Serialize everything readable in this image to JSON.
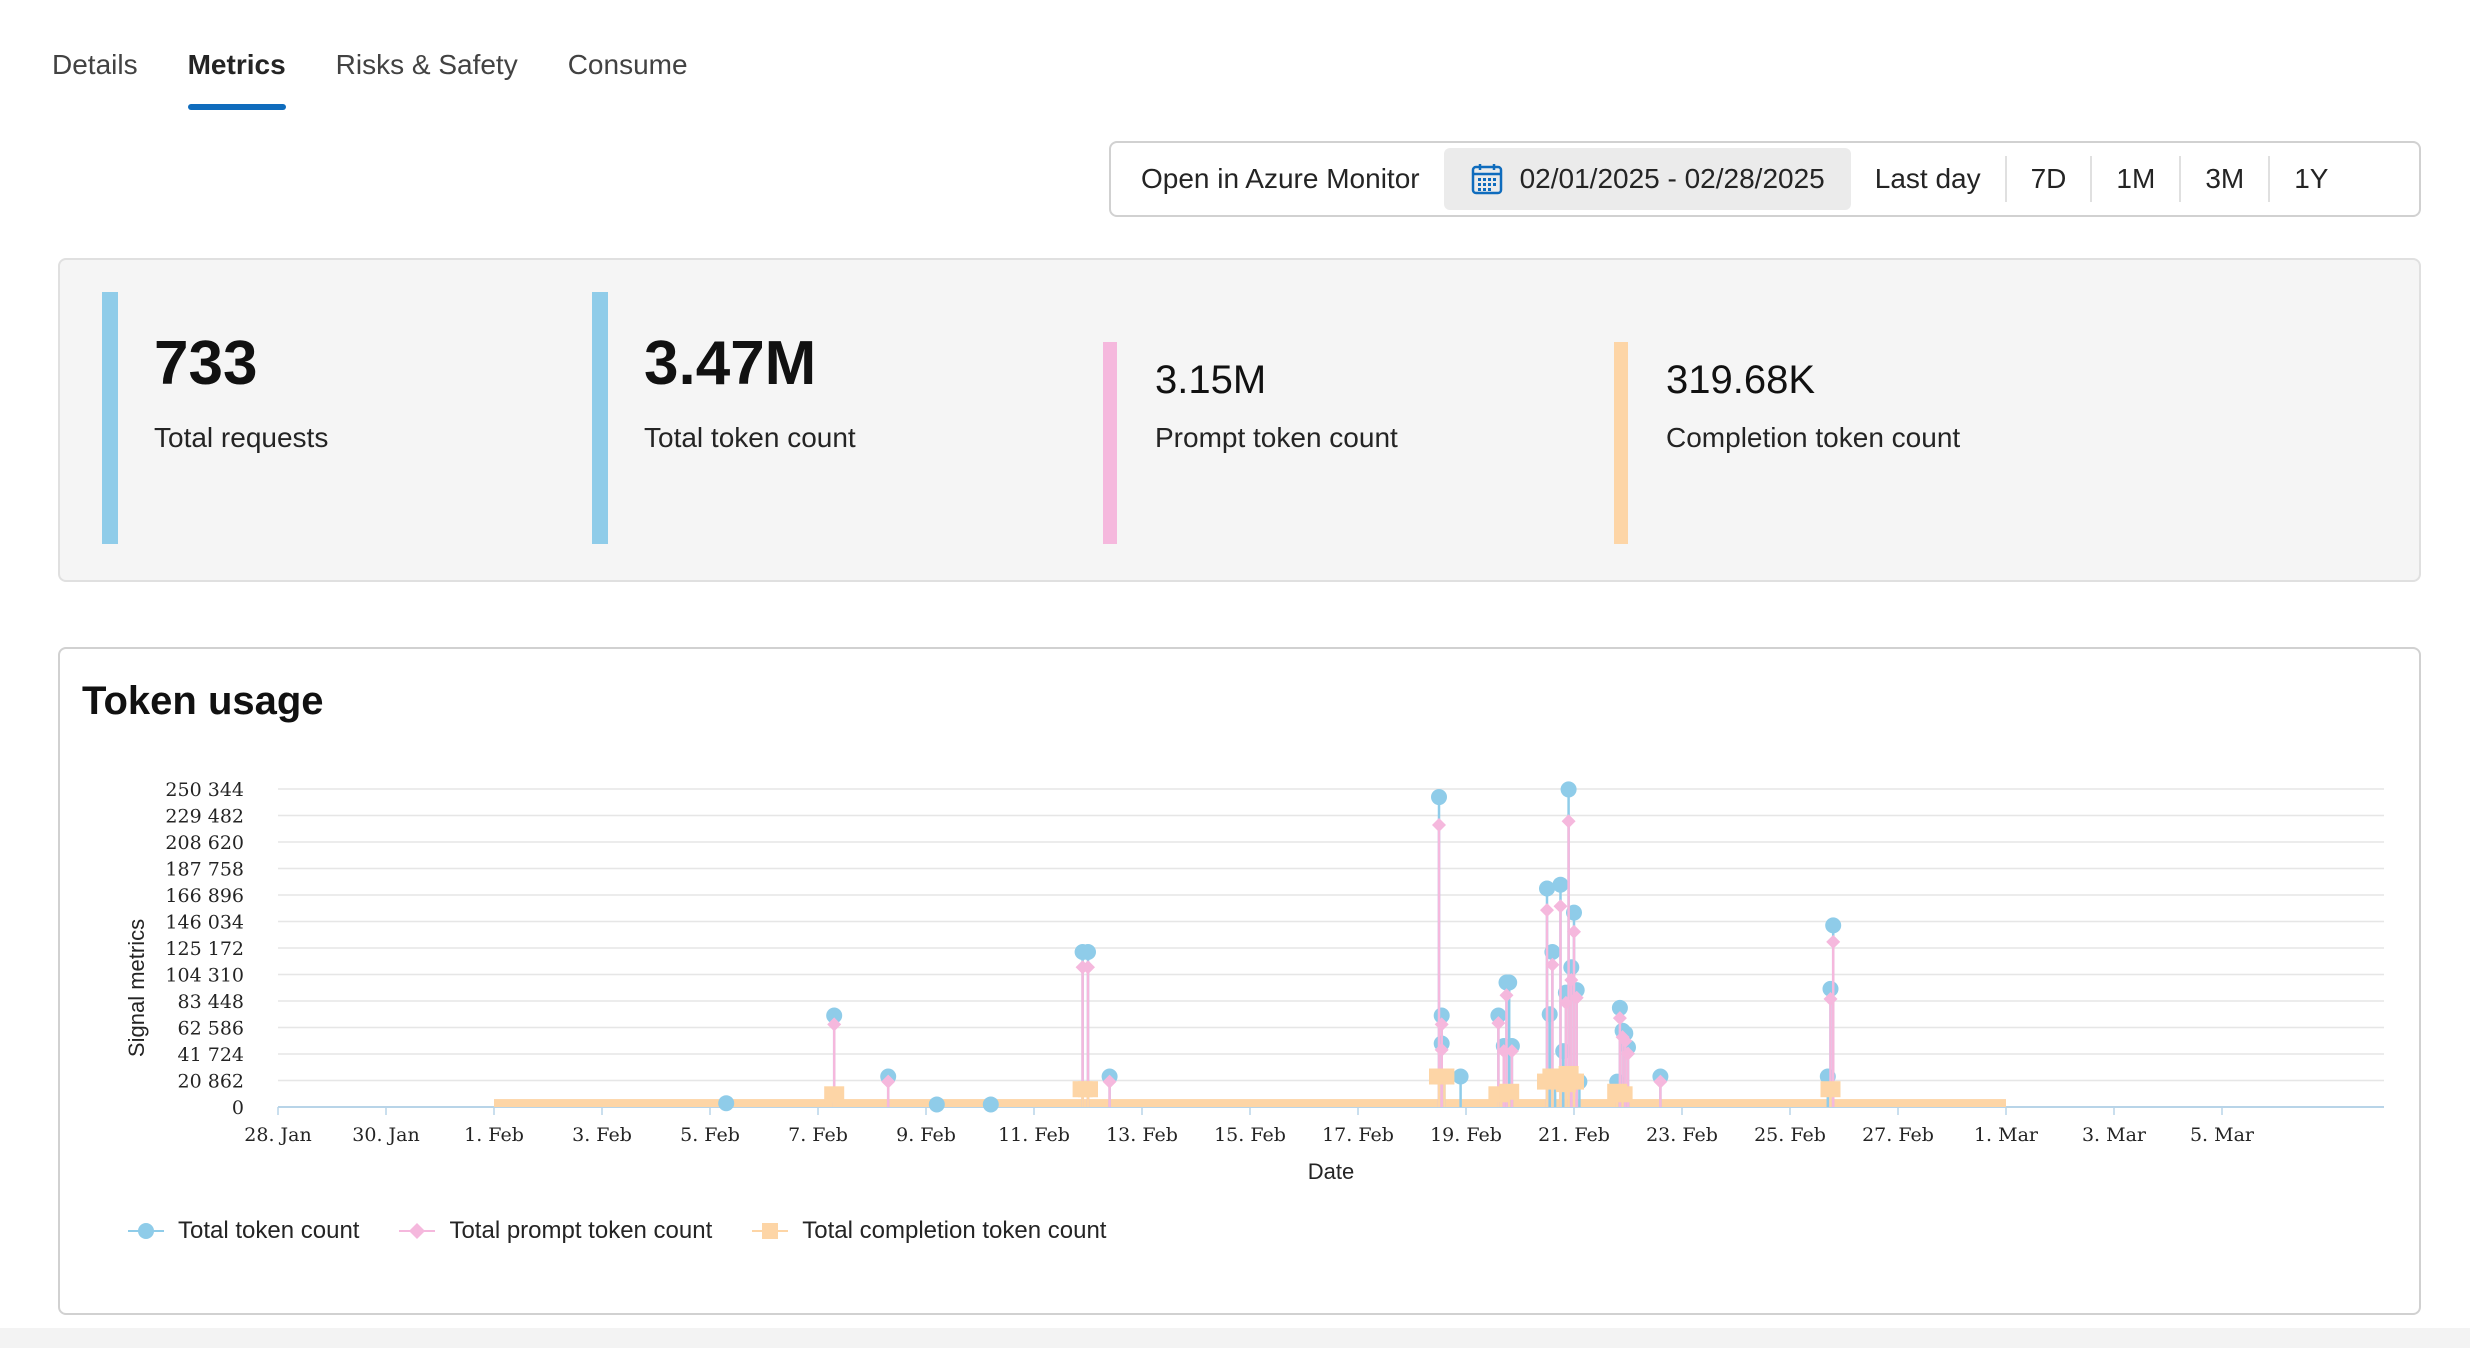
{
  "tabs": [
    {
      "label": "Details"
    },
    {
      "label": "Metrics"
    },
    {
      "label": "Risks & Safety"
    },
    {
      "label": "Consume"
    }
  ],
  "toolbar": {
    "open_monitor": "Open in Azure Monitor",
    "date_range": "02/01/2025 - 02/28/2025",
    "last_day": "Last day",
    "r7d": "7D",
    "r1m": "1M",
    "r3m": "3M",
    "r1y": "1Y"
  },
  "kpis": [
    {
      "value": "733",
      "label": "Total requests",
      "color": "#8fcce9"
    },
    {
      "value": "3.47M",
      "label": "Total token count",
      "color": "#8fcce9"
    },
    {
      "value": "3.15M",
      "label": "Prompt token count",
      "color": "#f5b8dd"
    },
    {
      "value": "319.68K",
      "label": "Completion token count",
      "color": "#fdd5a6"
    }
  ],
  "chart_title": "Token usage",
  "legend": {
    "total": "Total token count",
    "prompt": "Total prompt token count",
    "completion": "Total completion token count"
  },
  "colors": {
    "total": "#8fcce9",
    "prompt": "#f5b8dd",
    "completion": "#fdd5a6",
    "accent": "#0f6cbd"
  },
  "chart_data": {
    "type": "line",
    "title": "Token usage",
    "xlabel": "Date",
    "ylabel": "Signal metrics",
    "x_range_days": [
      -4,
      35
    ],
    "x_axis_note": "day offset from 1 Feb 2025 (0 = 1 Feb)",
    "x_ticks": [
      {
        "day": -4,
        "label": "28. Jan"
      },
      {
        "day": -2,
        "label": "30. Jan"
      },
      {
        "day": 0,
        "label": "1. Feb"
      },
      {
        "day": 2,
        "label": "3. Feb"
      },
      {
        "day": 4,
        "label": "5. Feb"
      },
      {
        "day": 6,
        "label": "7. Feb"
      },
      {
        "day": 8,
        "label": "9. Feb"
      },
      {
        "day": 10,
        "label": "11. Feb"
      },
      {
        "day": 12,
        "label": "13. Feb"
      },
      {
        "day": 14,
        "label": "15. Feb"
      },
      {
        "day": 16,
        "label": "17. Feb"
      },
      {
        "day": 18,
        "label": "19. Feb"
      },
      {
        "day": 20,
        "label": "21. Feb"
      },
      {
        "day": 22,
        "label": "23. Feb"
      },
      {
        "day": 24,
        "label": "25. Feb"
      },
      {
        "day": 26,
        "label": "27. Feb"
      },
      {
        "day": 28,
        "label": "1. Mar"
      },
      {
        "day": 30,
        "label": "3. Mar"
      },
      {
        "day": 32,
        "label": "5. Mar"
      }
    ],
    "y_ticks": [
      {
        "value": 0,
        "label": "0"
      },
      {
        "value": 20862,
        "label": "20 862"
      },
      {
        "value": 41724,
        "label": "41 724"
      },
      {
        "value": 62586,
        "label": "62 586"
      },
      {
        "value": 83448,
        "label": "83 448"
      },
      {
        "value": 104310,
        "label": "104 310"
      },
      {
        "value": 125172,
        "label": "125 172"
      },
      {
        "value": 146034,
        "label": "146 034"
      },
      {
        "value": 166896,
        "label": "166 896"
      },
      {
        "value": 187758,
        "label": "187 758"
      },
      {
        "value": 208620,
        "label": "208 620"
      },
      {
        "value": 229482,
        "label": "229 482"
      },
      {
        "value": 250344,
        "label": "250 344"
      }
    ],
    "ylim": [
      0,
      250344
    ],
    "data_range_days": [
      0,
      28
    ],
    "series": [
      {
        "name": "Total token count",
        "key": "total",
        "points": [
          [
            4.3,
            3000
          ],
          [
            6.3,
            72000
          ],
          [
            7.3,
            24000
          ],
          [
            8.2,
            2000
          ],
          [
            9.2,
            2000
          ],
          [
            10.9,
            122000
          ],
          [
            11.0,
            122000
          ],
          [
            11.4,
            24000
          ],
          [
            17.5,
            244000
          ],
          [
            17.55,
            72000
          ],
          [
            17.55,
            50000
          ],
          [
            17.6,
            24000
          ],
          [
            17.9,
            24000
          ],
          [
            18.6,
            72000
          ],
          [
            18.7,
            48000
          ],
          [
            18.75,
            98000
          ],
          [
            18.8,
            98000
          ],
          [
            18.85,
            48000
          ],
          [
            19.5,
            172000
          ],
          [
            19.55,
            73000
          ],
          [
            19.6,
            122000
          ],
          [
            19.65,
            24000
          ],
          [
            19.75,
            175000
          ],
          [
            19.8,
            44000
          ],
          [
            19.85,
            90000
          ],
          [
            19.9,
            250000
          ],
          [
            19.95,
            110000
          ],
          [
            20.0,
            153000
          ],
          [
            20.05,
            92000
          ],
          [
            20.1,
            20000
          ],
          [
            20.8,
            20000
          ],
          [
            20.85,
            78000
          ],
          [
            20.9,
            60000
          ],
          [
            20.95,
            58000
          ],
          [
            21.0,
            47000
          ],
          [
            21.6,
            24000
          ],
          [
            24.7,
            24000
          ],
          [
            24.75,
            93000
          ],
          [
            24.8,
            143000
          ]
        ]
      },
      {
        "name": "Total prompt token count",
        "key": "prompt",
        "points": [
          [
            6.3,
            65000
          ],
          [
            7.3,
            20000
          ],
          [
            10.9,
            110000
          ],
          [
            11.0,
            110000
          ],
          [
            11.4,
            20000
          ],
          [
            17.5,
            222000
          ],
          [
            17.55,
            65000
          ],
          [
            17.55,
            45000
          ],
          [
            18.6,
            66000
          ],
          [
            18.7,
            44000
          ],
          [
            18.75,
            88000
          ],
          [
            18.85,
            44000
          ],
          [
            19.5,
            155000
          ],
          [
            19.6,
            112000
          ],
          [
            19.75,
            158000
          ],
          [
            19.85,
            82000
          ],
          [
            19.9,
            225000
          ],
          [
            19.95,
            100000
          ],
          [
            20.0,
            138000
          ],
          [
            20.05,
            86000
          ],
          [
            20.85,
            70000
          ],
          [
            20.9,
            55000
          ],
          [
            20.95,
            52000
          ],
          [
            21.0,
            42000
          ],
          [
            21.6,
            20000
          ],
          [
            24.75,
            85000
          ],
          [
            24.8,
            130000
          ]
        ]
      },
      {
        "name": "Total completion token count",
        "key": "completion",
        "baseline": 1500,
        "points": [
          [
            6.3,
            10000
          ],
          [
            10.9,
            14000
          ],
          [
            11.0,
            14000
          ],
          [
            17.5,
            24000
          ],
          [
            17.6,
            24000
          ],
          [
            18.6,
            10000
          ],
          [
            18.8,
            12000
          ],
          [
            19.5,
            20000
          ],
          [
            19.6,
            24000
          ],
          [
            19.75,
            24000
          ],
          [
            19.85,
            18000
          ],
          [
            19.9,
            26000
          ],
          [
            20.0,
            20000
          ],
          [
            20.8,
            12000
          ],
          [
            20.9,
            10000
          ],
          [
            24.75,
            14000
          ]
        ]
      }
    ]
  }
}
